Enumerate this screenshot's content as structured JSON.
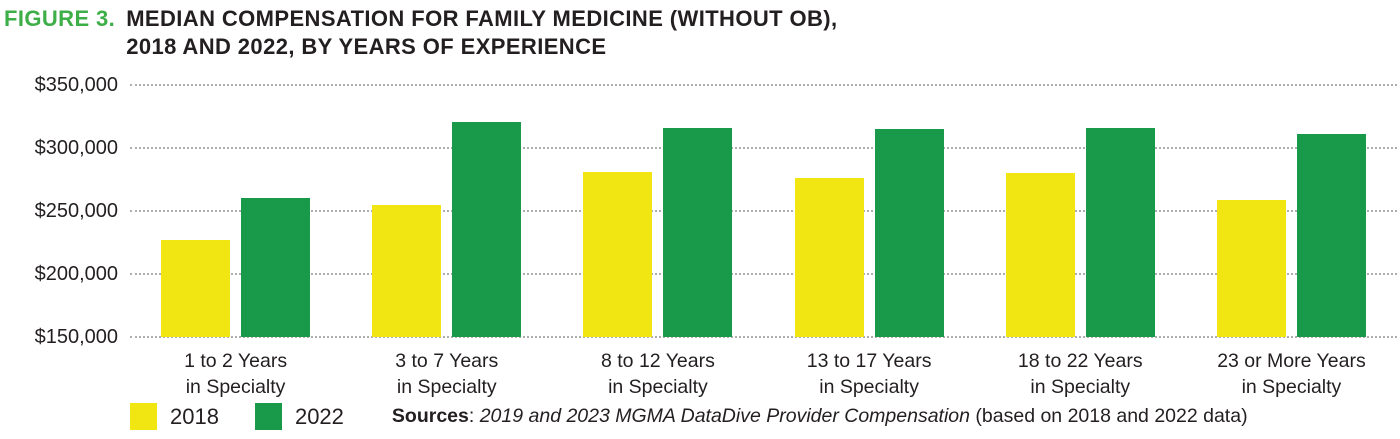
{
  "figure": {
    "label": "FIGURE 3.",
    "title_line1": "MEDIAN COMPENSATION FOR FAMILY MEDICINE (WITHOUT OB),",
    "title_line2": "2018 AND 2022, BY YEARS OF EXPERIENCE"
  },
  "chart_data": {
    "type": "bar",
    "title": "Median compensation for family medicine (without OB), 2018 and 2022, by years of experience",
    "categories": [
      {
        "line1": "1 to 2 Years",
        "line2": "in Specialty"
      },
      {
        "line1": "3 to 7 Years",
        "line2": "in Specialty"
      },
      {
        "line1": "8 to 12 Years",
        "line2": "in Specialty"
      },
      {
        "line1": "13 to 17 Years",
        "line2": "in Specialty"
      },
      {
        "line1": "18 to 22 Years",
        "line2": "in Specialty"
      },
      {
        "line1": "23 or More Years",
        "line2": "in Specialty"
      }
    ],
    "series": [
      {
        "name": "2018",
        "color": "#f1e612",
        "values": [
          227000,
          255000,
          281000,
          276000,
          280000,
          259000
        ]
      },
      {
        "name": "2022",
        "color": "#189a4a",
        "values": [
          260000,
          321000,
          316000,
          315000,
          316000,
          311000
        ]
      }
    ],
    "ylim": [
      150000,
      350000
    ],
    "yticks": [
      {
        "label": "$350,000",
        "value": 350000
      },
      {
        "label": "$300,000",
        "value": 300000
      },
      {
        "label": "$250,000",
        "value": 250000
      },
      {
        "label": "$200,000",
        "value": 200000
      },
      {
        "label": "$150,000",
        "value": 150000
      }
    ],
    "grid": "horizontal-dotted",
    "legend_position": "bottom-left",
    "xlabel": "",
    "ylabel": ""
  },
  "source": {
    "label": "Sources",
    "separator": ": ",
    "italic": "2019 and 2023 MGMA DataDive Provider Compensation",
    "suffix": " (based on 2018 and 2022 data)"
  },
  "colors": {
    "figure_label_green": "#3eae49",
    "bar_yellow_2018": "#f1e612",
    "bar_green_2022": "#189a4a",
    "text": "#231f20",
    "gridline": "#aeaeae"
  }
}
